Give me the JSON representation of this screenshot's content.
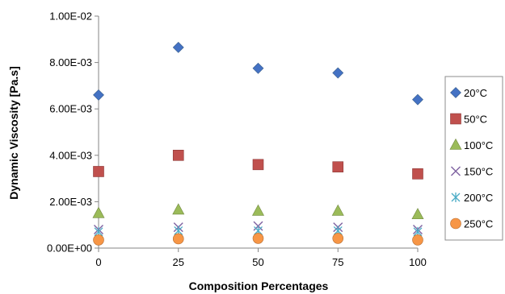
{
  "chart_data": {
    "type": "scatter",
    "title": "",
    "xlabel": "Composition Percentages",
    "ylabel": "Dynamic Viscosity [Pa.s]",
    "xlim": [
      0,
      100
    ],
    "ylim": [
      0,
      0.01
    ],
    "x_ticks": [
      0,
      25,
      50,
      75,
      100
    ],
    "x_tick_labels": [
      "0",
      "25",
      "50",
      "75",
      "100"
    ],
    "y_ticks": [
      0,
      0.002,
      0.004,
      0.006,
      0.008,
      0.01
    ],
    "y_tick_labels": [
      "0.00E+00",
      "2.00E-03",
      "4.00E-03",
      "6.00E-03",
      "8.00E-03",
      "1.00E-02"
    ],
    "grid": false,
    "legend_position": "right",
    "x": [
      0,
      25,
      50,
      75,
      100
    ],
    "series": [
      {
        "name": "20°C",
        "marker": "diamond",
        "color": "#4472C4",
        "values": [
          0.0066,
          0.00865,
          0.00775,
          0.00755,
          0.0064
        ]
      },
      {
        "name": "50°C",
        "marker": "square",
        "color": "#C0504D",
        "values": [
          0.0033,
          0.004,
          0.0036,
          0.0035,
          0.0032
        ]
      },
      {
        "name": "100°C",
        "marker": "triangle",
        "color": "#9BBB59",
        "values": [
          0.0015,
          0.00165,
          0.0016,
          0.0016,
          0.00145
        ]
      },
      {
        "name": "150°C",
        "marker": "x",
        "color": "#7F62A1",
        "values": [
          0.0008,
          0.0009,
          0.00095,
          0.0009,
          0.0008
        ]
      },
      {
        "name": "200°C",
        "marker": "asterisk",
        "color": "#4BACC6",
        "values": [
          0.0007,
          0.00075,
          0.00075,
          0.00075,
          0.0007
        ]
      },
      {
        "name": "250°C",
        "marker": "circle",
        "color": "#F79646",
        "values": [
          0.00035,
          0.0004,
          0.00042,
          0.00042,
          0.00035
        ]
      }
    ]
  }
}
